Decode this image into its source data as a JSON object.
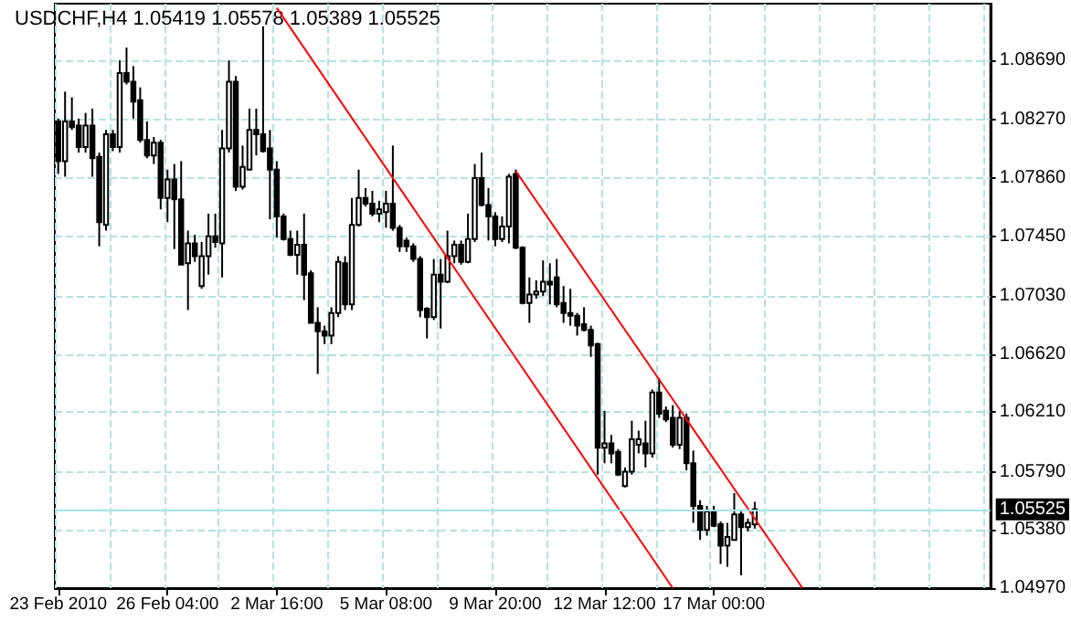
{
  "chart_data": {
    "type": "candlestick",
    "title": "USDCHF,H4 1.05419 1.05578 1.05389 1.05525",
    "categories": [
      "23 Feb 2010",
      null,
      null,
      null,
      null,
      null,
      null,
      null,
      null,
      null,
      null,
      null,
      null,
      null,
      null,
      null,
      "26 Feb 04:00",
      null,
      null,
      null,
      null,
      null,
      null,
      null,
      null,
      null,
      null,
      null,
      null,
      null,
      null,
      null,
      "2 Mar 16:00",
      null,
      null,
      null,
      null,
      null,
      null,
      null,
      null,
      null,
      null,
      null,
      null,
      null,
      null,
      null,
      "5 Mar 08:00",
      null,
      null,
      null,
      null,
      null,
      null,
      null,
      null,
      null,
      null,
      null,
      null,
      null,
      null,
      null,
      "9 Mar 20:00",
      null,
      null,
      null,
      null,
      null,
      null,
      null,
      null,
      null,
      null,
      null,
      null,
      null,
      null,
      null,
      "12 Mar 12:00",
      null,
      null,
      null,
      null,
      null,
      null,
      null,
      null,
      null,
      null,
      null,
      null,
      null,
      null,
      null,
      "17 Mar 00:00",
      null,
      null,
      null,
      null,
      null,
      null,
      null,
      null,
      null,
      null,
      null,
      null,
      null,
      null,
      null,
      null,
      null,
      null,
      null,
      null,
      null,
      null,
      null,
      null,
      null,
      null,
      null,
      null,
      null,
      null,
      null,
      null,
      null,
      null,
      null,
      null,
      null,
      null,
      null,
      null
    ],
    "ohlc": [
      [
        1.0826,
        1.0828,
        1.0789,
        1.0798
      ],
      [
        1.0798,
        1.0847,
        1.0787,
        1.0826
      ],
      [
        1.0826,
        1.0843,
        1.082,
        1.0822
      ],
      [
        1.0823,
        1.0828,
        1.0804,
        1.0808
      ],
      [
        1.0808,
        1.0832,
        1.0804,
        1.0823
      ],
      [
        1.0823,
        1.0835,
        1.0787,
        1.08
      ],
      [
        1.0801,
        1.0804,
        1.0738,
        1.0755
      ],
      [
        1.0753,
        1.082,
        1.0749,
        1.0817
      ],
      [
        1.0817,
        1.082,
        1.0805,
        1.0808
      ],
      [
        1.0808,
        1.0869,
        1.0804,
        1.086
      ],
      [
        1.086,
        1.0878,
        1.0852,
        1.0854
      ],
      [
        1.0854,
        1.0865,
        1.0828,
        1.084
      ],
      [
        1.0841,
        1.085,
        1.0811,
        1.0813
      ],
      [
        1.0813,
        1.0826,
        1.08,
        1.0802
      ],
      [
        1.0802,
        1.0815,
        1.0796,
        1.0811
      ],
      [
        1.0811,
        1.0813,
        1.0764,
        1.0772
      ],
      [
        1.0772,
        1.0792,
        1.0755,
        1.0785
      ],
      [
        1.0785,
        1.0796,
        1.0736,
        1.0771
      ],
      [
        1.0771,
        1.0798,
        1.0725,
        1.0725
      ],
      [
        1.0726,
        1.0749,
        1.0693,
        1.074
      ],
      [
        1.074,
        1.0746,
        1.0727,
        1.0731
      ],
      [
        1.071,
        1.0741,
        1.0708,
        1.0731
      ],
      [
        1.0731,
        1.0761,
        1.0718,
        1.0745
      ],
      [
        1.0745,
        1.0761,
        1.0737,
        1.0741
      ],
      [
        1.074,
        1.082,
        1.0716,
        1.0807
      ],
      [
        1.0807,
        1.0869,
        1.0804,
        1.0854
      ],
      [
        1.0854,
        1.0858,
        1.0777,
        1.078
      ],
      [
        1.078,
        1.0809,
        1.0778,
        1.0794
      ],
      [
        1.0792,
        1.0835,
        1.0792,
        1.082
      ],
      [
        1.082,
        1.0835,
        1.0802,
        1.0817
      ],
      [
        1.0817,
        1.0893,
        1.0804,
        1.0805
      ],
      [
        1.0807,
        1.082,
        1.0757,
        1.0792
      ],
      [
        1.0792,
        1.0798,
        1.0744,
        1.0759
      ],
      [
        1.0759,
        1.0761,
        1.0742,
        1.0743
      ],
      [
        1.0743,
        1.0749,
        1.0731,
        1.0732
      ],
      [
        1.0732,
        1.0749,
        1.0718,
        1.0739
      ],
      [
        1.0739,
        1.0761,
        1.07,
        1.0718
      ],
      [
        1.0719,
        1.0721,
        1.0684,
        1.0684
      ],
      [
        1.0684,
        1.0695,
        1.0648,
        1.0678
      ],
      [
        1.0678,
        1.0682,
        1.0669,
        1.0675
      ],
      [
        1.0675,
        1.0695,
        1.0669,
        1.0691
      ],
      [
        1.0691,
        1.0731,
        1.0688,
        1.0727
      ],
      [
        1.0726,
        1.0731,
        1.0693,
        1.0697
      ],
      [
        1.0697,
        1.0772,
        1.0693,
        1.0753
      ],
      [
        1.0753,
        1.0792,
        1.0752,
        1.0772
      ],
      [
        1.0772,
        1.0779,
        1.0766,
        1.0768
      ],
      [
        1.0768,
        1.0777,
        1.0759,
        1.0761
      ],
      [
        1.0761,
        1.077,
        1.0755,
        1.0764
      ],
      [
        1.0762,
        1.0777,
        1.0751,
        1.0768
      ],
      [
        1.0768,
        1.0809,
        1.0749,
        1.0751
      ],
      [
        1.0751,
        1.0753,
        1.0734,
        1.0738
      ],
      [
        1.0742,
        1.0744,
        1.0734,
        1.0738
      ],
      [
        1.0738,
        1.074,
        1.0727,
        1.0729
      ],
      [
        1.0729,
        1.0731,
        1.0688,
        1.0693
      ],
      [
        1.0694,
        1.0695,
        1.0673,
        1.0688
      ],
      [
        1.0688,
        1.0729,
        1.0686,
        1.0718
      ],
      [
        1.0718,
        1.0729,
        1.068,
        1.0713
      ],
      [
        1.0713,
        1.0749,
        1.0712,
        1.0731
      ],
      [
        1.0731,
        1.0742,
        1.0726,
        1.0739
      ],
      [
        1.0739,
        1.0742,
        1.0725,
        1.0727
      ],
      [
        1.0727,
        1.0761,
        1.0726,
        1.0743
      ],
      [
        1.0743,
        1.0796,
        1.0741,
        1.0786
      ],
      [
        1.0786,
        1.0804,
        1.0766,
        1.0767
      ],
      [
        1.0767,
        1.0779,
        1.0742,
        1.0759
      ],
      [
        1.0759,
        1.0762,
        1.0738,
        1.0743
      ],
      [
        1.0743,
        1.0759,
        1.0741,
        1.0752
      ],
      [
        1.0752,
        1.0789,
        1.074,
        1.0787
      ],
      [
        1.0789,
        1.0792,
        1.0736,
        1.0737
      ],
      [
        1.0737,
        1.0738,
        1.0697,
        1.0698
      ],
      [
        1.0698,
        1.0716,
        1.0684,
        1.0704
      ],
      [
        1.0704,
        1.0714,
        1.0701,
        1.0706
      ],
      [
        1.0706,
        1.0728,
        1.0703,
        1.0713
      ],
      [
        1.0713,
        1.0726,
        1.0697,
        1.0711
      ],
      [
        1.0716,
        1.0729,
        1.0695,
        1.0697
      ],
      [
        1.0698,
        1.071,
        1.0684,
        1.0691
      ],
      [
        1.0691,
        1.0708,
        1.0682,
        1.0689
      ],
      [
        1.0689,
        1.0691,
        1.0675,
        1.0682
      ],
      [
        1.0683,
        1.0695,
        1.0678,
        1.0679
      ],
      [
        1.0679,
        1.0682,
        1.066,
        1.0668
      ],
      [
        1.0669,
        1.067,
        1.0577,
        1.0596
      ],
      [
        1.0596,
        1.0622,
        1.0585,
        1.0599
      ],
      [
        1.0599,
        1.0605,
        1.0585,
        1.0592
      ],
      [
        1.0593,
        1.0595,
        1.0576,
        1.0577
      ],
      [
        1.0569,
        1.0582,
        1.0568,
        1.0579
      ],
      [
        1.0579,
        1.0615,
        1.0577,
        1.0602
      ],
      [
        1.0598,
        1.0608,
        1.0592,
        1.0602
      ],
      [
        1.0599,
        1.0615,
        1.0582,
        1.0592
      ],
      [
        1.0592,
        1.0637,
        1.0589,
        1.0635
      ],
      [
        1.0635,
        1.0645,
        1.0617,
        1.062
      ],
      [
        1.0622,
        1.0625,
        1.0614,
        1.0616
      ],
      [
        1.0617,
        1.0626,
        1.0596,
        1.0598
      ],
      [
        1.0598,
        1.0622,
        1.0595,
        1.0617
      ],
      [
        1.0617,
        1.062,
        1.058,
        1.0585
      ],
      [
        1.0585,
        1.0594,
        1.0543,
        1.0555
      ],
      [
        1.0555,
        1.0559,
        1.0531,
        1.0538
      ],
      [
        1.0538,
        1.0555,
        1.0534,
        1.0551
      ],
      [
        1.0551,
        1.0555,
        1.054,
        1.0541
      ],
      [
        1.0542,
        1.0544,
        1.0514,
        1.0527
      ],
      [
        1.0527,
        1.0543,
        1.0512,
        1.0533
      ],
      [
        1.0531,
        1.0564,
        1.0531,
        1.0549
      ],
      [
        1.0549,
        1.0551,
        1.0506,
        1.054
      ],
      [
        1.054,
        1.0546,
        1.0537,
        1.0543
      ],
      [
        1.05419,
        1.05578,
        1.05389,
        1.05525
      ],
      null,
      null,
      null,
      null,
      null,
      null,
      null,
      null,
      null,
      null,
      null,
      null,
      null,
      null,
      null,
      null,
      null,
      null,
      null,
      null,
      null,
      null,
      null,
      null,
      null,
      null,
      null,
      null,
      null,
      null,
      null,
      null,
      null,
      null
    ],
    "series": [
      {
        "type": "line",
        "color": "#ff0000",
        "values": [
          null,
          null,
          null,
          null,
          null,
          null,
          null,
          null,
          null,
          null,
          null,
          null,
          null,
          null,
          null,
          null,
          null,
          null,
          null,
          null,
          null,
          null,
          null,
          null,
          null,
          null,
          null,
          null,
          null,
          null,
          null,
          null,
          1.0906,
          null,
          null,
          null,
          null,
          null,
          null,
          null,
          null,
          null,
          null,
          null,
          null,
          null,
          null,
          null,
          null,
          null,
          null,
          null,
          null,
          null,
          null,
          null,
          null,
          null,
          null,
          null,
          null,
          null,
          null,
          null,
          null,
          null,
          null,
          null,
          null,
          null,
          null,
          null,
          null,
          null,
          null,
          null,
          null,
          null,
          null,
          null,
          null,
          null,
          null,
          null,
          null,
          null,
          null,
          null,
          null,
          null,
          1.0497,
          null,
          null,
          null,
          null,
          null,
          null,
          null,
          null,
          null,
          null,
          null,
          null,
          null,
          null,
          null,
          null,
          null,
          null,
          null,
          null,
          null,
          null,
          null,
          null,
          null,
          null,
          null,
          null,
          null,
          null,
          null,
          null,
          null,
          null,
          null,
          null,
          null,
          null,
          null,
          null,
          null,
          null,
          null,
          null,
          null,
          null
        ]
      },
      {
        "type": "line",
        "color": "#ff0000",
        "values": [
          null,
          null,
          null,
          null,
          null,
          null,
          null,
          null,
          null,
          null,
          null,
          null,
          null,
          null,
          null,
          null,
          null,
          null,
          null,
          null,
          null,
          null,
          null,
          null,
          null,
          null,
          null,
          null,
          null,
          null,
          null,
          null,
          null,
          null,
          null,
          null,
          null,
          null,
          null,
          null,
          null,
          null,
          null,
          null,
          null,
          null,
          null,
          null,
          null,
          null,
          null,
          null,
          null,
          null,
          null,
          null,
          null,
          null,
          null,
          null,
          null,
          null,
          null,
          null,
          null,
          null,
          null,
          1.0791,
          null,
          null,
          null,
          null,
          null,
          null,
          null,
          null,
          null,
          null,
          null,
          null,
          null,
          null,
          null,
          null,
          null,
          null,
          null,
          null,
          null,
          null,
          null,
          null,
          null,
          null,
          null,
          null,
          null,
          null,
          null,
          null,
          null,
          null,
          null,
          null,
          null,
          null,
          null,
          null,
          null,
          1.0497,
          null,
          null,
          null,
          null,
          null,
          null,
          null,
          null,
          null,
          null,
          null,
          null,
          null,
          null,
          null,
          null,
          null,
          null,
          null,
          null,
          null,
          null,
          null,
          null,
          null,
          null,
          null
        ]
      }
    ],
    "ylim": [
      1.0497,
      1.0909
    ],
    "yticks": [
      {
        "value": 1.0869,
        "label": "1.08690"
      },
      {
        "value": 1.0827,
        "label": "1.08270"
      },
      {
        "value": 1.0786,
        "label": "1.07860"
      },
      {
        "value": 1.0745,
        "label": "1.07450"
      },
      {
        "value": 1.0703,
        "label": "1.07030"
      },
      {
        "value": 1.0662,
        "label": "1.06620"
      },
      {
        "value": 1.0621,
        "label": "1.06210"
      },
      {
        "value": 1.0579,
        "label": "1.05790"
      },
      {
        "value": 1.0538,
        "label": "1.05380"
      },
      {
        "value": 1.0497,
        "label": "1.04970"
      }
    ],
    "ref_lines": [
      {
        "axis": "y",
        "value": 1.05525,
        "label": "1.05525",
        "color": "#a8e4e8"
      }
    ],
    "grid": true
  }
}
